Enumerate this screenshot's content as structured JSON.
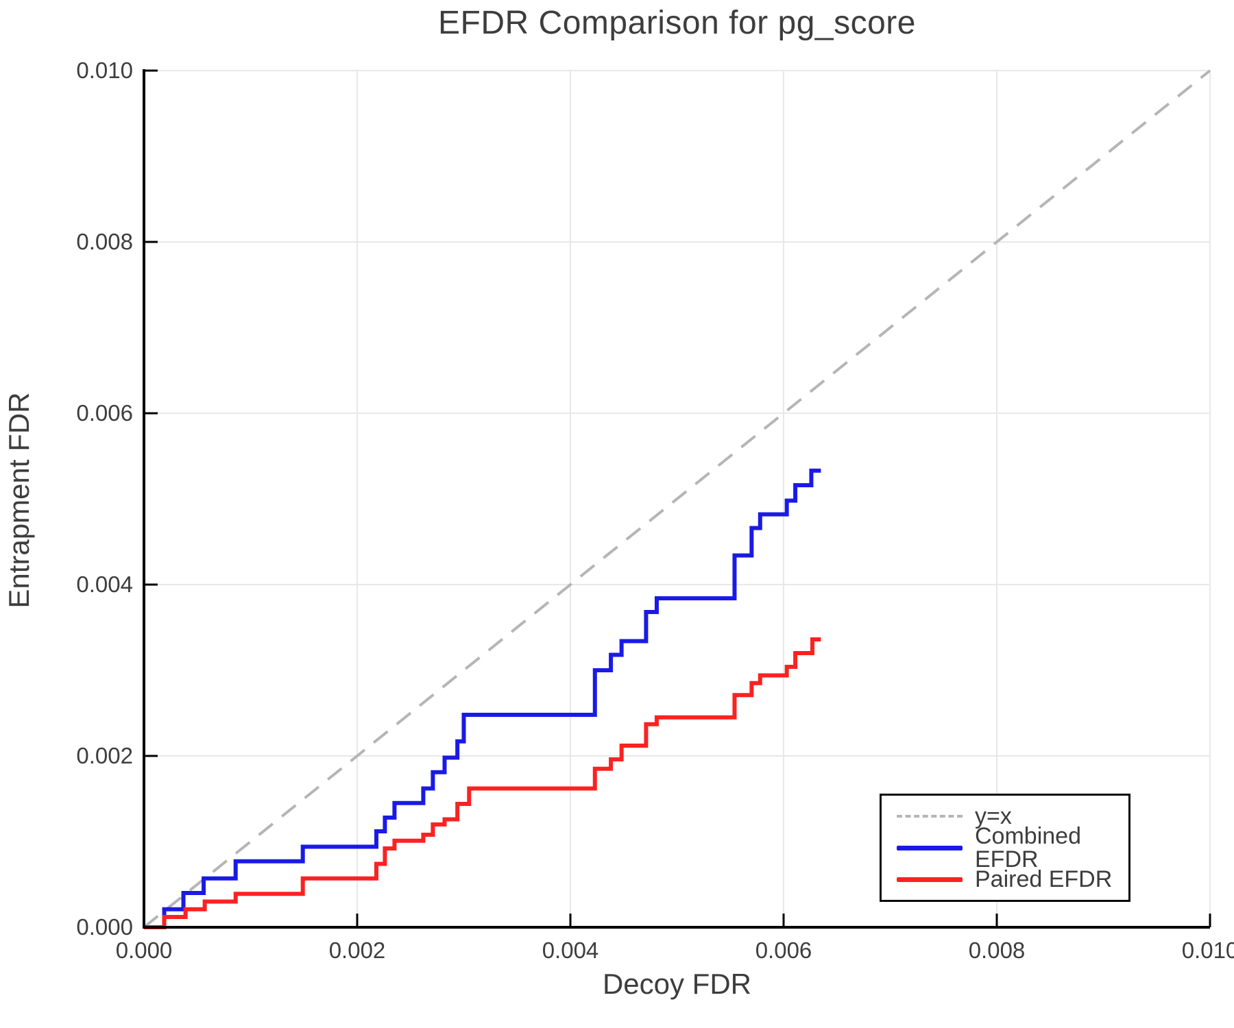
{
  "page": {
    "title": "EFDR Comparison for pg_score"
  },
  "chart_data": {
    "type": "line",
    "title": "EFDR Comparison for pg_score",
    "xlabel": "Decoy FDR",
    "ylabel": "Entrapment FDR",
    "xlim": [
      0.0,
      0.01
    ],
    "ylim": [
      0.0,
      0.01
    ],
    "grid": true,
    "legend_position": "lower right",
    "x_tick_values": [
      0.0,
      0.002,
      0.004,
      0.006,
      0.008,
      0.01
    ],
    "x_tick_labels": [
      "0.000",
      "0.002",
      "0.004",
      "0.006",
      "0.008",
      "0.010"
    ],
    "y_tick_values": [
      0.0,
      0.002,
      0.004,
      0.006,
      0.008,
      0.01
    ],
    "y_tick_labels": [
      "0.000",
      "0.002",
      "0.004",
      "0.006",
      "0.008",
      "0.010"
    ],
    "colors": {
      "identity": "#b5b5b5",
      "combined": "#1a1ae6",
      "paired": "#fb2222",
      "grid": "#e8e8e8",
      "text": "#3d3d3d",
      "spine": "#000000"
    },
    "legend": [
      {
        "label": "y=x",
        "style": "dashed",
        "color_key": "identity"
      },
      {
        "label": "Combined EFDR",
        "style": "solid",
        "color_key": "combined"
      },
      {
        "label": "Paired EFDR",
        "style": "solid",
        "color_key": "paired"
      }
    ],
    "identity_line": {
      "x": [
        0.0,
        0.01
      ],
      "y": [
        0.0,
        0.01
      ]
    },
    "series": [
      {
        "name": "Combined EFDR",
        "color_key": "combined",
        "step": "post",
        "x_end": 0.00635,
        "x": [
          0.0,
          0.00019,
          0.00037,
          0.00056,
          0.00086,
          0.00149,
          0.00218,
          0.00226,
          0.00235,
          0.00262,
          0.00271,
          0.00282,
          0.00294,
          0.003,
          0.00423,
          0.00438,
          0.00448,
          0.00471,
          0.00481,
          0.00554,
          0.0057,
          0.00578,
          0.00603,
          0.00611,
          0.00626
        ],
        "y": [
          0.0,
          0.00021,
          0.0004,
          0.00057,
          0.00077,
          0.00094,
          0.00112,
          0.00128,
          0.00145,
          0.00162,
          0.00181,
          0.00198,
          0.00217,
          0.00248,
          0.003,
          0.00318,
          0.00334,
          0.00368,
          0.00384,
          0.00434,
          0.00466,
          0.00482,
          0.00498,
          0.00516,
          0.00533
        ]
      },
      {
        "name": "Paired EFDR",
        "color_key": "paired",
        "step": "post",
        "x_end": 0.00635,
        "x": [
          0.0,
          0.00019,
          0.00039,
          0.00057,
          0.00086,
          0.00149,
          0.00218,
          0.00226,
          0.00235,
          0.00262,
          0.00271,
          0.00282,
          0.00294,
          0.00305,
          0.00423,
          0.00438,
          0.00448,
          0.00471,
          0.00481,
          0.00554,
          0.0057,
          0.00578,
          0.00603,
          0.00611,
          0.00627
        ],
        "y": [
          0.0,
          0.00012,
          0.00021,
          0.0003,
          0.00039,
          0.00057,
          0.00074,
          0.00092,
          0.00101,
          0.00108,
          0.0012,
          0.00126,
          0.00144,
          0.00162,
          0.00185,
          0.00196,
          0.00212,
          0.00237,
          0.00245,
          0.00271,
          0.00285,
          0.00294,
          0.00304,
          0.0032,
          0.00336
        ]
      }
    ]
  }
}
